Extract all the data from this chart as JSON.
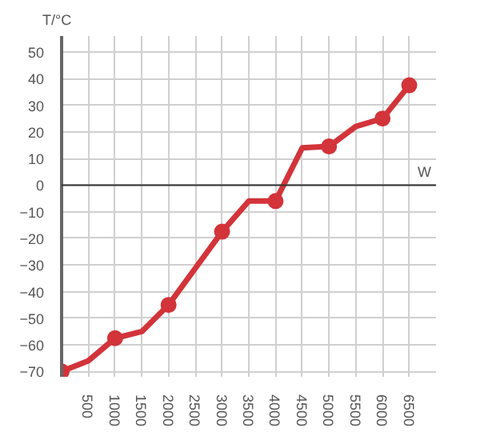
{
  "chart_data": {
    "type": "line",
    "xlabel": "W",
    "ylabel": "T/°C",
    "series": [
      {
        "color": "#d2343a",
        "marker": "none",
        "x": [
          0,
          500,
          1000,
          1500,
          2000,
          3000,
          3500,
          4000,
          4500,
          5000,
          5500,
          6000,
          6500
        ],
        "values": [
          -70,
          -66,
          -57.5,
          -55,
          -45,
          -17.5,
          -6,
          -6,
          14,
          14.5,
          22,
          25,
          37.5
        ]
      },
      {
        "type": "scatter",
        "color": "#d2343a",
        "marker": "circle",
        "x": [
          0,
          1000,
          2000,
          3000,
          4000,
          5000,
          6000,
          6500
        ],
        "values": [
          -70,
          -57.5,
          -45,
          -17.5,
          -6,
          14.5,
          25,
          37.5
        ]
      }
    ],
    "xlim": [
      0,
      7000
    ],
    "ylim": [
      -72,
      56
    ],
    "xticks": [
      500,
      1000,
      1500,
      2000,
      2500,
      3000,
      3500,
      4000,
      4500,
      5000,
      5500,
      6000,
      6500
    ],
    "yticks": [
      -70,
      -60,
      -50,
      -40,
      -30,
      -20,
      -10,
      0,
      10,
      20,
      30,
      40,
      50
    ],
    "ref_lines": [
      {
        "axis": "y",
        "value": 0,
        "color": "#333333"
      }
    ],
    "grid": true,
    "line_style": "solid"
  }
}
